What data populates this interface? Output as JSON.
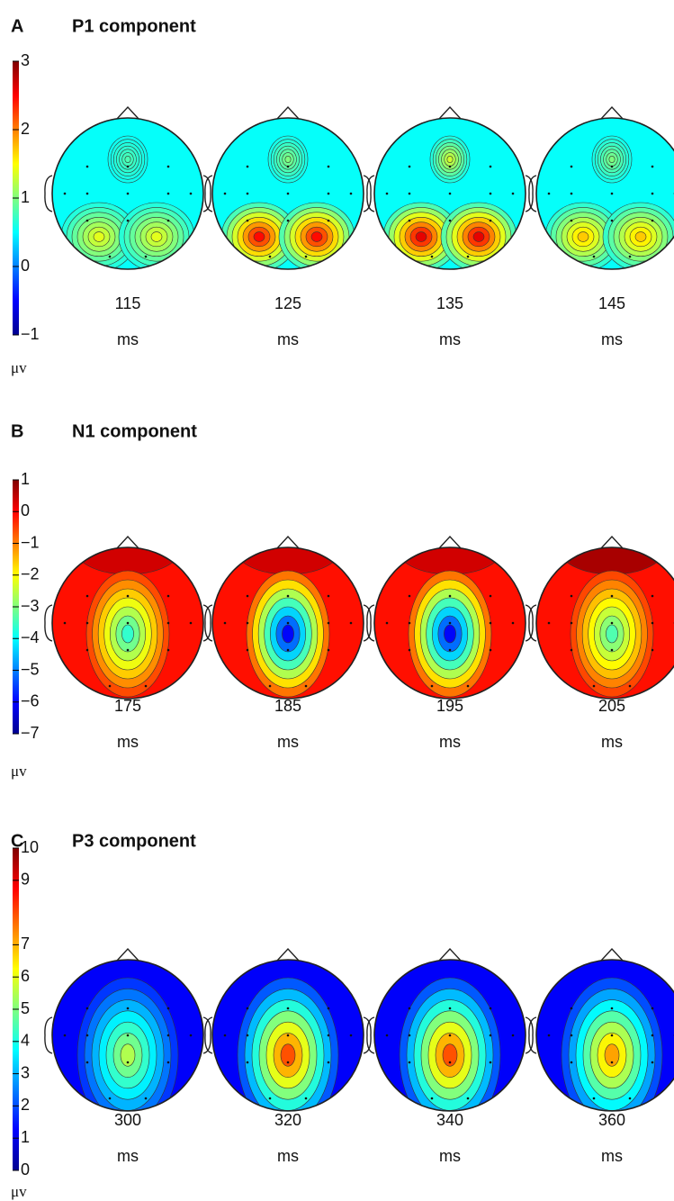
{
  "panels": [
    {
      "label": "A",
      "title": "P1 component",
      "colorbar": {
        "range": [
          -1,
          3
        ],
        "ticks": [
          {
            "value": -1,
            "label": "−1"
          },
          0,
          1,
          2,
          3
        ],
        "unit": "μv"
      },
      "maps": [
        {
          "time": "115",
          "unit": "ms"
        },
        {
          "time": "125",
          "unit": "ms"
        },
        {
          "time": "135",
          "unit": "ms"
        },
        {
          "time": "145",
          "unit": "ms"
        }
      ]
    },
    {
      "label": "B",
      "title": "N1 component",
      "colorbar": {
        "range": [
          -7,
          1
        ],
        "ticks": [
          1,
          0,
          {
            "value": -1,
            "label": "−1"
          },
          {
            "value": -2,
            "label": "−2"
          },
          {
            "value": -3,
            "label": "−3"
          },
          {
            "value": -4,
            "label": "−4"
          },
          {
            "value": -5,
            "label": "−5"
          },
          {
            "value": -6,
            "label": "−6"
          },
          {
            "value": -7,
            "label": "−7"
          }
        ],
        "unit": "μv"
      },
      "maps": [
        {
          "time": "175",
          "unit": "ms"
        },
        {
          "time": "185",
          "unit": "ms"
        },
        {
          "time": "195",
          "unit": "ms"
        },
        {
          "time": "205",
          "unit": "ms"
        }
      ]
    },
    {
      "label": "C",
      "title": "P3 component",
      "colorbar": {
        "range": [
          0,
          10
        ],
        "ticks": [
          10,
          9,
          7,
          6,
          5,
          4,
          3,
          2,
          1,
          0
        ],
        "unit": "μv"
      },
      "maps": [
        {
          "time": "300",
          "unit": "ms"
        },
        {
          "time": "320",
          "unit": "ms"
        },
        {
          "time": "340",
          "unit": "ms"
        },
        {
          "time": "360",
          "unit": "ms"
        }
      ]
    }
  ]
}
